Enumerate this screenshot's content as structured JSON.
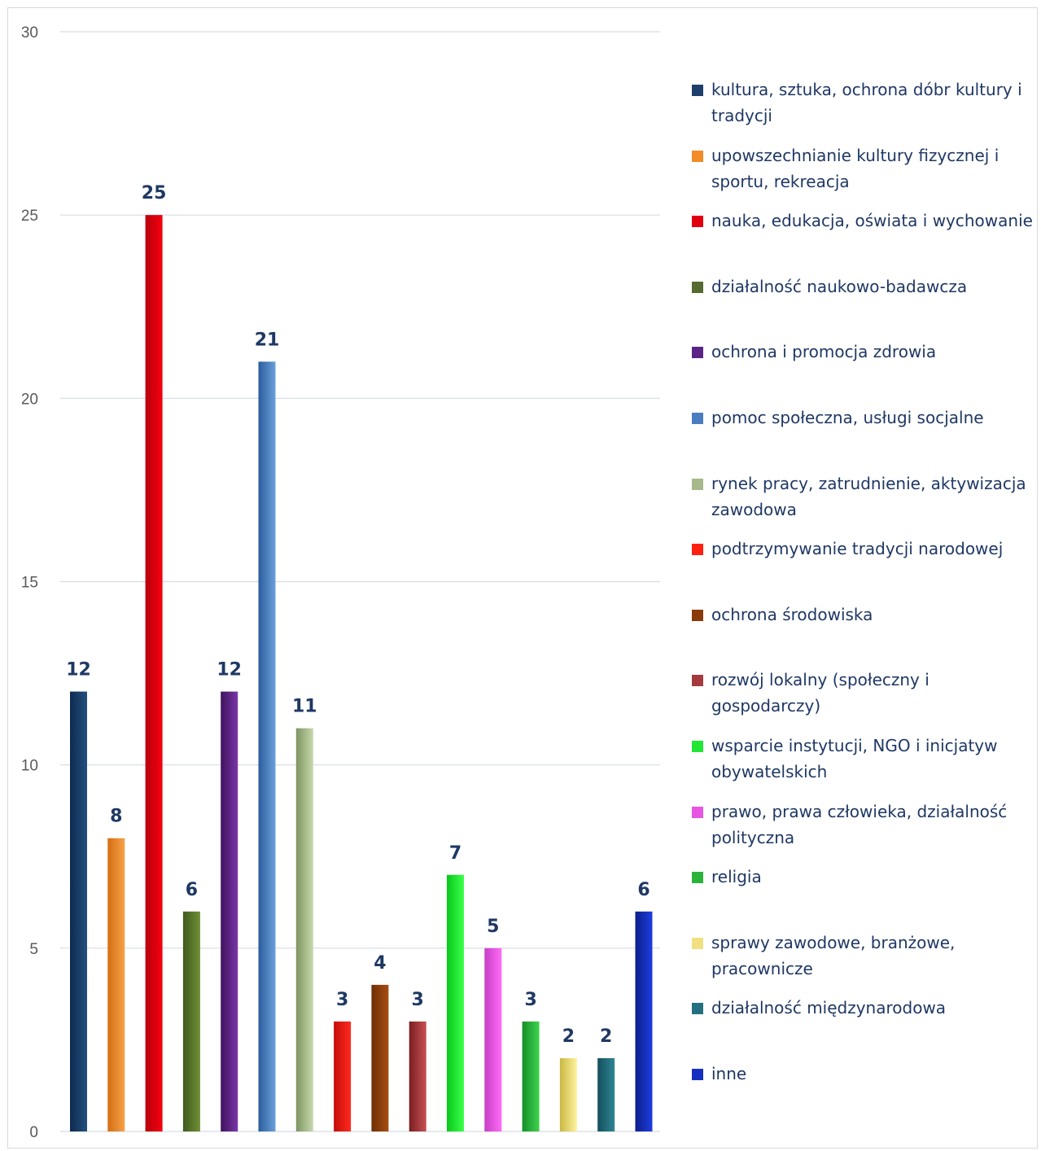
{
  "chart_data": {
    "type": "bar",
    "title": "",
    "xlabel": "",
    "ylabel": "",
    "ylim": [
      0,
      30
    ],
    "yticks": [
      0,
      5,
      10,
      15,
      20,
      25,
      30
    ],
    "grid": true,
    "legend_position": "right",
    "categories": [
      "kultura, sztuka, ochrona dóbr kultury i tradycji",
      "upowszechnianie kultury fizycznej i sportu, rekreacja",
      "nauka, edukacja, oświata i wychowanie",
      "działalność naukowo-badawcza",
      "ochrona i promocja zdrowia",
      "pomoc społeczna, usługi socjalne",
      "rynek pracy, zatrudnienie, aktywizacja zawodowa",
      "podtrzymywanie tradycji narodowej",
      "ochrona środowiska",
      "rozwój lokalny (społeczny i gospodarczy)",
      "wsparcie instytucji, NGO i inicjatyw obywatelskich",
      "prawo, prawa człowieka, działalność polityczna",
      "religia",
      "sprawy zawodowe, branżowe, pracownicze",
      "działalność międzynarodowa",
      "inne"
    ],
    "values": [
      12,
      8,
      25,
      6,
      12,
      21,
      11,
      3,
      4,
      3,
      7,
      5,
      3,
      2,
      2,
      6
    ],
    "colors": [
      [
        "#0e2a4f",
        "#24507e"
      ],
      [
        "#d46d12",
        "#f7a24a"
      ],
      [
        "#b8000d",
        "#f5000e"
      ],
      [
        "#3f5a1e",
        "#6f8f35"
      ],
      [
        "#3f145e",
        "#7a35a7"
      ],
      [
        "#2a5d9c",
        "#6aa0dc"
      ],
      [
        "#7e9561",
        "#c7d8ac"
      ],
      [
        "#c40d08",
        "#ff2a1e"
      ],
      [
        "#6f2e05",
        "#a64d12"
      ],
      [
        "#7a1f22",
        "#c85053"
      ],
      [
        "#08c81a",
        "#3cff4b"
      ],
      [
        "#c63ec4",
        "#ff6cf8"
      ],
      [
        "#158f27",
        "#3fd24f"
      ],
      [
        "#c9b842",
        "#fff29e"
      ],
      [
        "#154f5d",
        "#2e8595"
      ],
      [
        "#0b1f8a",
        "#1f3de0"
      ]
    ],
    "legend_swatch_colors": [
      "#1f3f6b",
      "#f28c28",
      "#e00010",
      "#556b2f",
      "#5a2385",
      "#4a7cc0",
      "#a6b98a",
      "#ff2010",
      "#8b3a0a",
      "#a33a3d",
      "#22e634",
      "#e855e2",
      "#2ab33b",
      "#f0e080",
      "#227080",
      "#1530c0"
    ]
  }
}
